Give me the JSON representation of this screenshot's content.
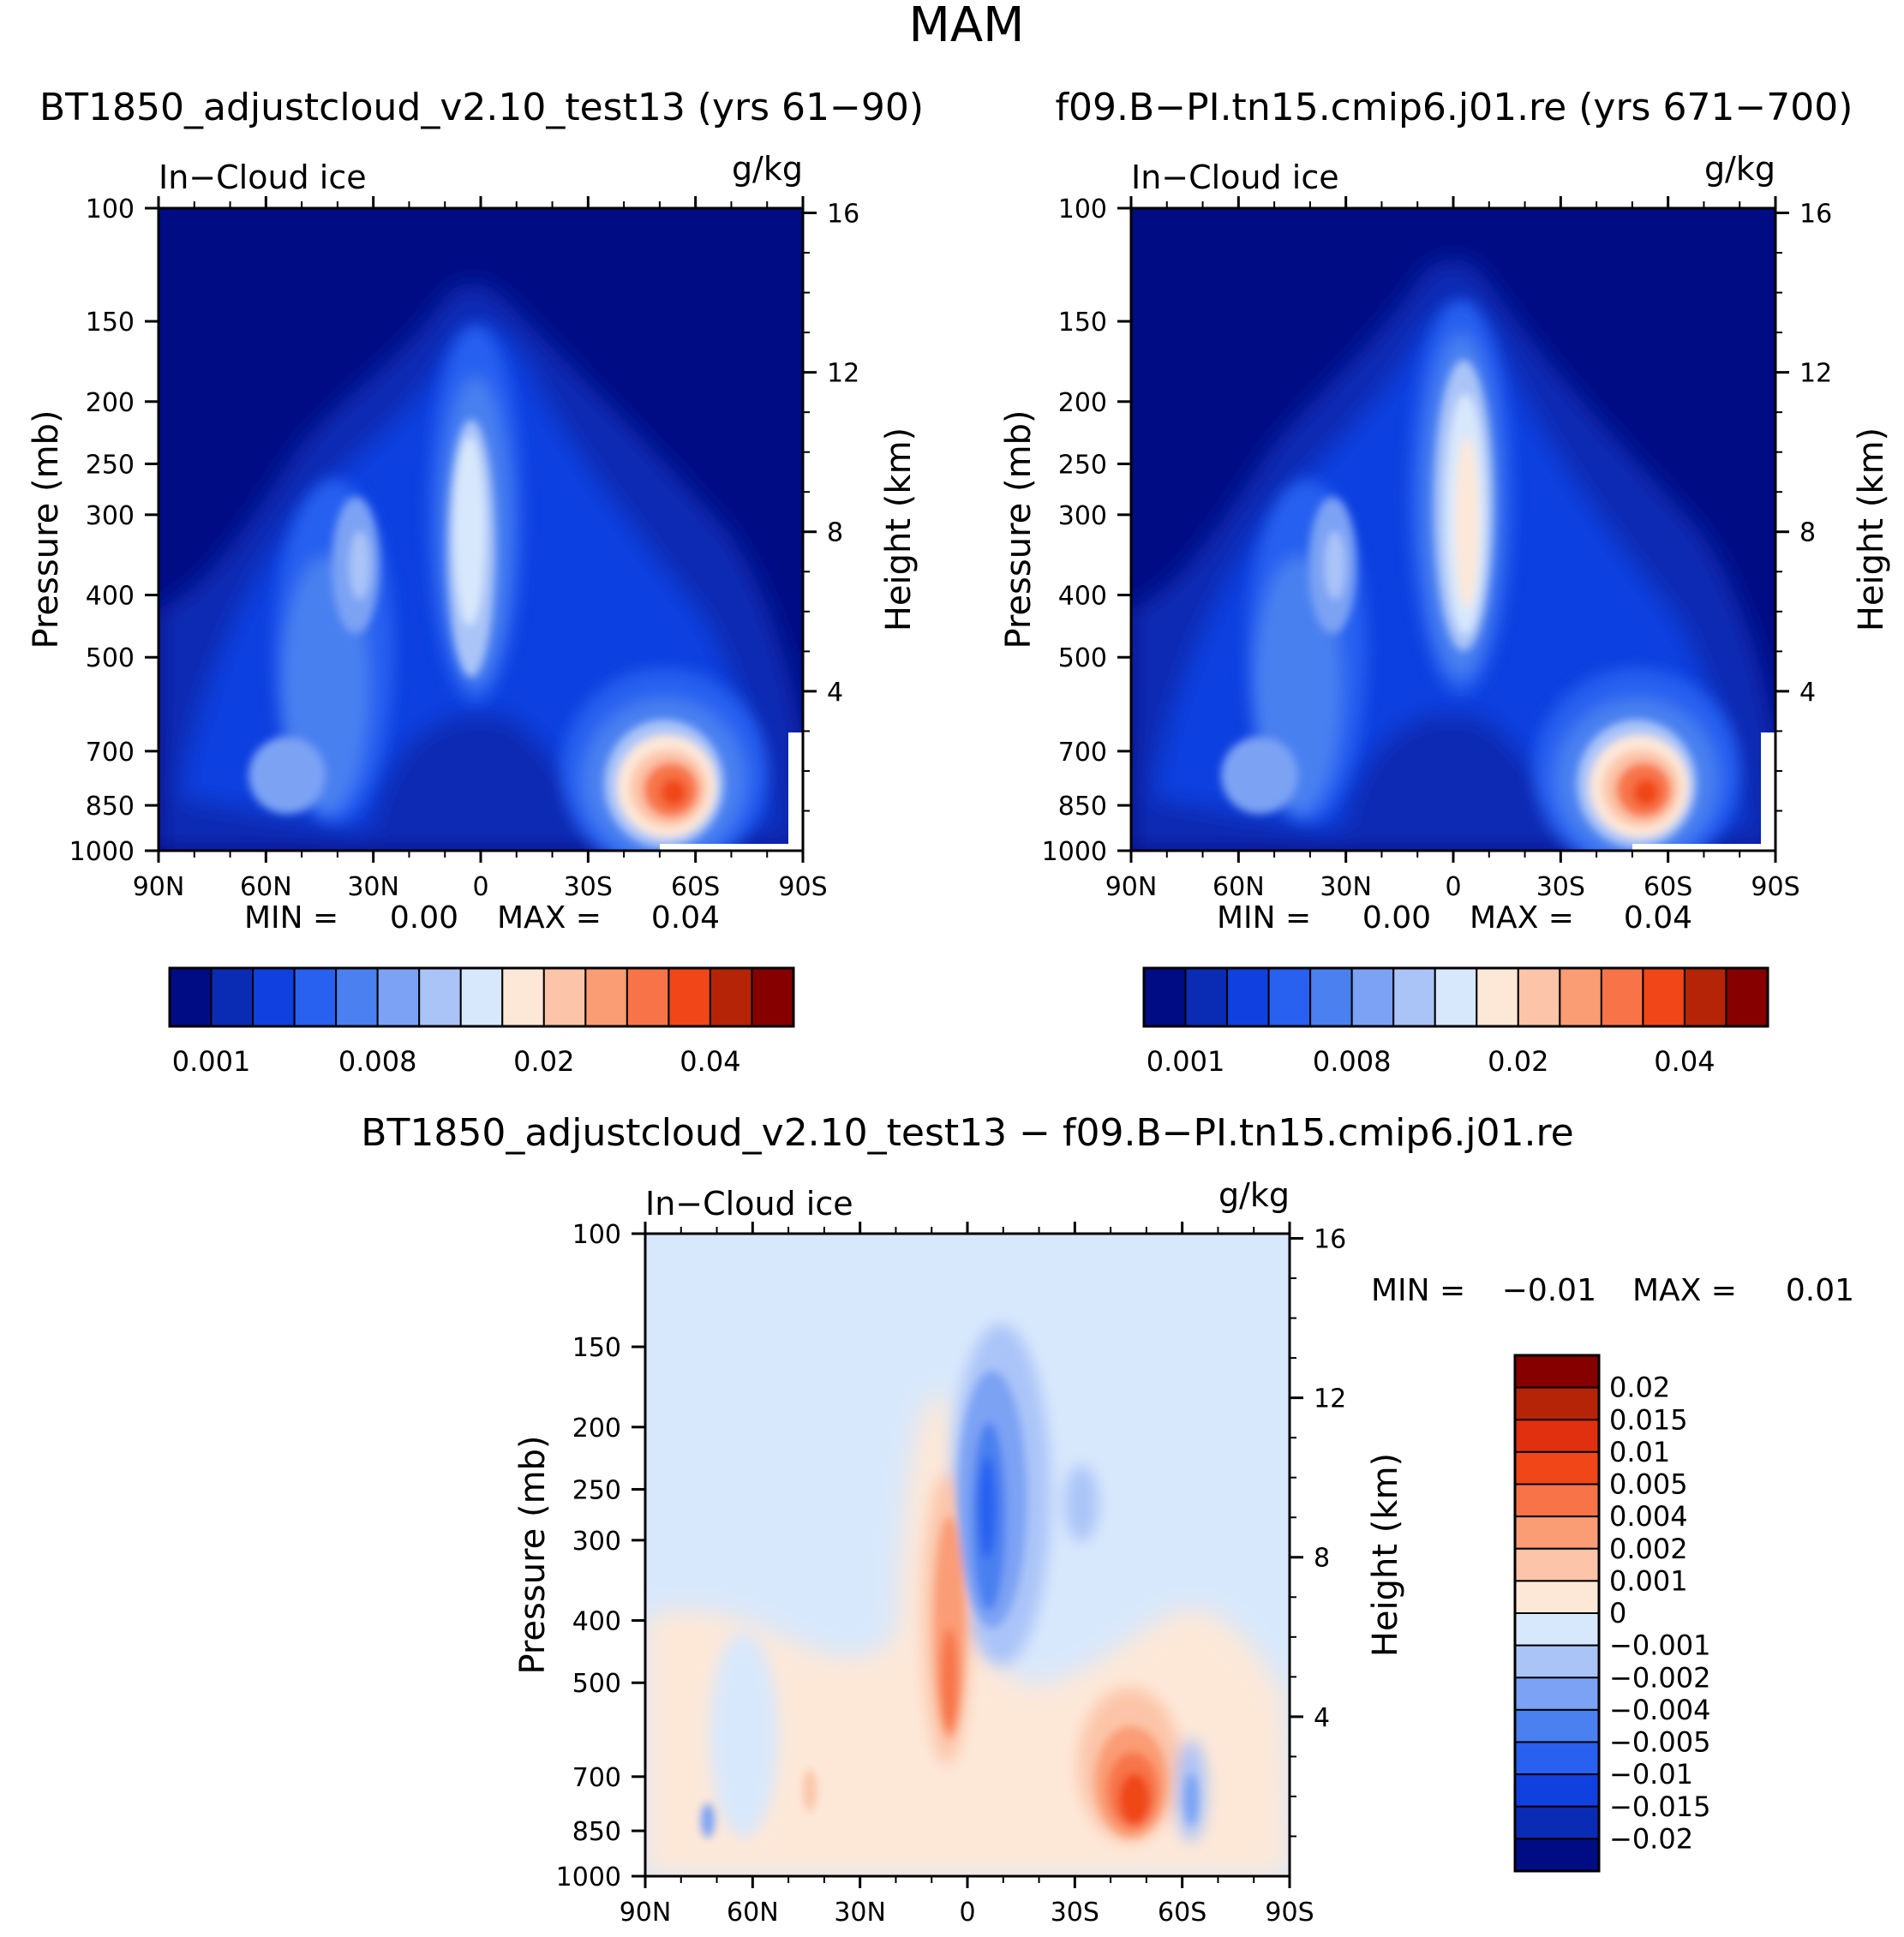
{
  "figure": {
    "title": "MAM"
  },
  "chart_data": [
    {
      "id": "panel1",
      "type": "heatmap",
      "title": "BT1850_adjustcloud_v2.10_test13 (yrs 61−90)",
      "variable": "In−Cloud ice",
      "units": "g/kg",
      "xlabel": "",
      "ylabel": "Pressure (mb)",
      "ylabel_right": "Height (km)",
      "x_tick_labels": [
        "90N",
        "60N",
        "30N",
        "0",
        "30S",
        "60S",
        "90S"
      ],
      "y_tick_labels": [
        "100",
        "150",
        "200",
        "250",
        "300",
        "400",
        "500",
        "700",
        "850",
        "1000"
      ],
      "y_tick_values": [
        100,
        150,
        200,
        250,
        300,
        400,
        500,
        700,
        850,
        1000
      ],
      "height_tick_labels": [
        "16",
        "12",
        "8",
        "4"
      ],
      "height_tick_values": [
        16,
        12,
        8,
        4
      ],
      "stats": {
        "min_label": "MIN =",
        "min": "0.00",
        "max_label": "MAX =",
        "max": "0.04"
      },
      "colorbar": {
        "orientation": "horizontal",
        "levels": [
          0.001,
          0.002,
          0.004,
          0.006,
          0.008,
          0.01,
          0.012,
          0.015,
          0.02,
          0.025,
          0.03,
          0.035,
          0.04,
          0.045,
          0.05
        ],
        "labels": [
          "0.001",
          "0.008",
          "0.02",
          "0.04"
        ],
        "colors": [
          "#000c84",
          "#0a2cb4",
          "#1040e0",
          "#2860f0",
          "#4a80f0",
          "#7ba2f4",
          "#aac4f8",
          "#d8e8fc",
          "#fde8d8",
          "#fcc4a8",
          "#fa9c74",
          "#f87448",
          "#f04618",
          "#b62408",
          "#860000"
        ]
      },
      "features": [
        {
          "lat": 0,
          "p": 300,
          "value": 0.015,
          "desc": "equatorial upper-level ice column"
        },
        {
          "lat": -55,
          "p": 800,
          "value": 0.04,
          "desc": "southern mid-latitude low-level maximum"
        },
        {
          "lat": 35,
          "p": 380,
          "value": 0.008,
          "desc": "northern subtropical maximum"
        }
      ]
    },
    {
      "id": "panel2",
      "type": "heatmap",
      "title": "f09.B−PI.tn15.cmip6.j01.re (yrs 671−700)",
      "variable": "In−Cloud ice",
      "units": "g/kg",
      "xlabel": "",
      "ylabel": "Pressure (mb)",
      "ylabel_right": "Height (km)",
      "x_tick_labels": [
        "90N",
        "60N",
        "30N",
        "0",
        "30S",
        "60S",
        "90S"
      ],
      "y_tick_labels": [
        "100",
        "150",
        "200",
        "250",
        "300",
        "400",
        "500",
        "700",
        "850",
        "1000"
      ],
      "y_tick_values": [
        100,
        150,
        200,
        250,
        300,
        400,
        500,
        700,
        850,
        1000
      ],
      "height_tick_labels": [
        "16",
        "12",
        "8",
        "4"
      ],
      "height_tick_values": [
        16,
        12,
        8,
        4
      ],
      "stats": {
        "min_label": "MIN =",
        "min": "0.00",
        "max_label": "MAX =",
        "max": "0.04"
      },
      "colorbar": {
        "orientation": "horizontal",
        "levels": [
          0.001,
          0.002,
          0.004,
          0.006,
          0.008,
          0.01,
          0.012,
          0.015,
          0.02,
          0.025,
          0.03,
          0.035,
          0.04,
          0.045,
          0.05
        ],
        "labels": [
          "0.001",
          "0.008",
          "0.02",
          "0.04"
        ],
        "colors": [
          "#000c84",
          "#0a2cb4",
          "#1040e0",
          "#2860f0",
          "#4a80f0",
          "#7ba2f4",
          "#aac4f8",
          "#d8e8fc",
          "#fde8d8",
          "#fcc4a8",
          "#fa9c74",
          "#f87448",
          "#f04618",
          "#b62408",
          "#860000"
        ]
      },
      "features": [
        {
          "lat": -2,
          "p": 320,
          "value": 0.02,
          "desc": "equatorial upper-level ice column"
        },
        {
          "lat": -55,
          "p": 820,
          "value": 0.04,
          "desc": "southern mid-latitude low-level maximum"
        },
        {
          "lat": 35,
          "p": 380,
          "value": 0.008,
          "desc": "northern subtropical maximum"
        }
      ]
    },
    {
      "id": "diff",
      "type": "heatmap",
      "title": "BT1850_adjustcloud_v2.10_test13 − f09.B−PI.tn15.cmip6.j01.re",
      "variable": "In−Cloud ice",
      "units": "g/kg",
      "xlabel": "",
      "ylabel": "Pressure (mb)",
      "ylabel_right": "Height (km)",
      "x_tick_labels": [
        "90N",
        "60N",
        "30N",
        "0",
        "30S",
        "60S",
        "90S"
      ],
      "y_tick_labels": [
        "100",
        "150",
        "200",
        "250",
        "300",
        "400",
        "500",
        "700",
        "850",
        "1000"
      ],
      "y_tick_values": [
        100,
        150,
        200,
        250,
        300,
        400,
        500,
        700,
        850,
        1000
      ],
      "height_tick_labels": [
        "16",
        "12",
        "8",
        "4"
      ],
      "height_tick_values": [
        16,
        12,
        8,
        4
      ],
      "stats": {
        "min_label": "MIN =",
        "min": "−0.01",
        "max_label": "MAX =",
        "max": "0.01"
      },
      "colorbar": {
        "orientation": "vertical",
        "labels": [
          "0.02",
          "0.015",
          "0.01",
          "0.005",
          "0.004",
          "0.002",
          "0.001",
          "0",
          "−0.001",
          "−0.002",
          "−0.004",
          "−0.005",
          "−0.01",
          "−0.015",
          "−0.02"
        ],
        "colors": [
          "#860000",
          "#b62408",
          "#e03010",
          "#f04618",
          "#f87448",
          "#fa9c74",
          "#fcc4a8",
          "#fde8d8",
          "#d8e8fc",
          "#aac4f8",
          "#7ba2f4",
          "#4a80f0",
          "#2860f0",
          "#1040e0",
          "#0a2cb4",
          "#000c84"
        ]
      },
      "features": [
        {
          "lat": 5,
          "p": 450,
          "value": 0.01,
          "desc": "positive band just north of equator"
        },
        {
          "lat": -5,
          "p": 280,
          "value": -0.01,
          "desc": "negative column just south of equator"
        },
        {
          "lat": -45,
          "p": 800,
          "value": 0.01,
          "desc": "positive southern low-level maximum"
        }
      ]
    }
  ]
}
